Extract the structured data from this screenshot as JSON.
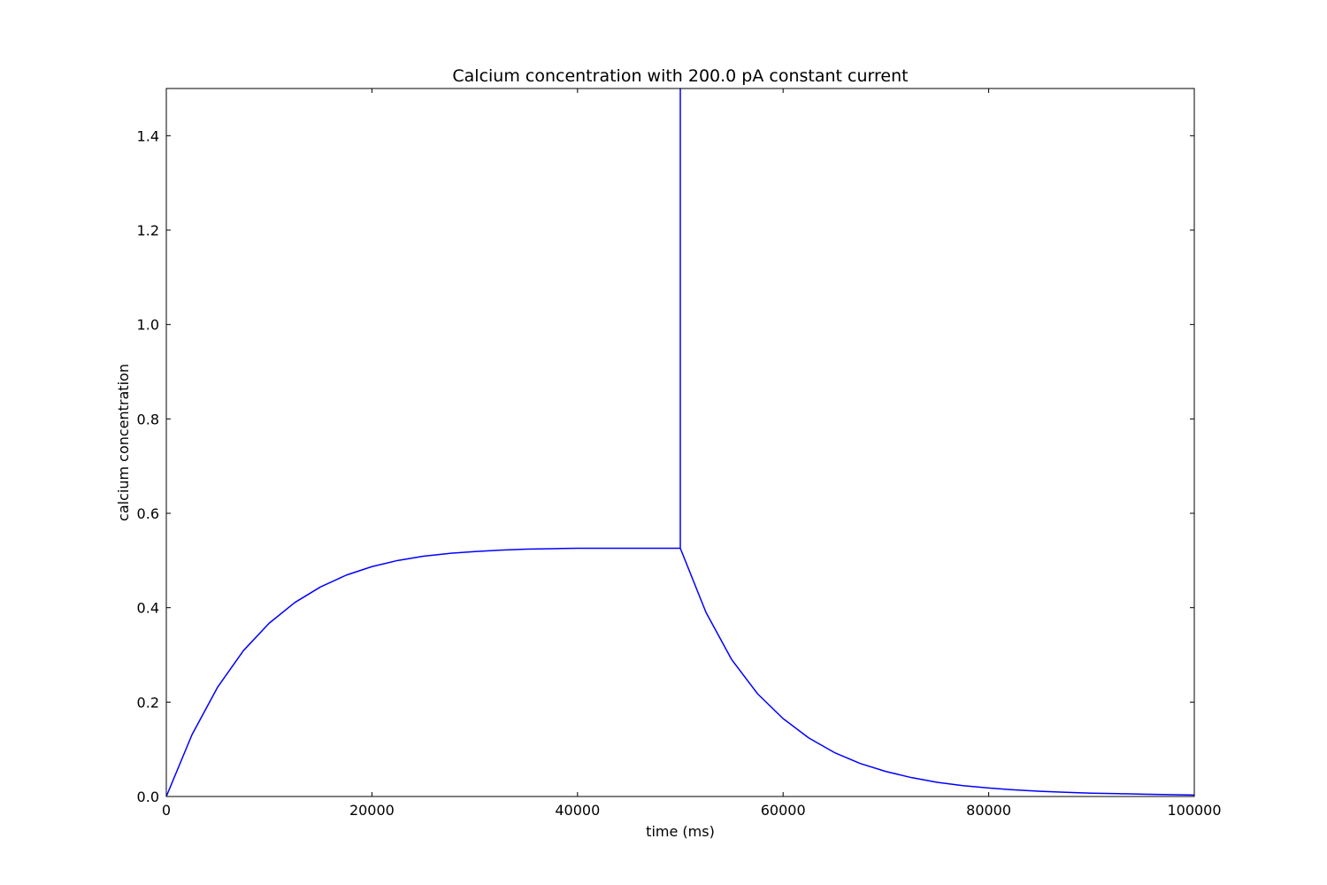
{
  "chart_data": {
    "type": "line",
    "title": "Calcium concentration with 200.0 pA constant current",
    "xlabel": "time (ms)",
    "ylabel": "calcium concentration",
    "xlim": [
      0,
      100000
    ],
    "ylim": [
      0.0,
      1.5
    ],
    "xticks": [
      0,
      20000,
      40000,
      60000,
      80000,
      100000
    ],
    "xtick_labels": [
      "0",
      "20000",
      "40000",
      "60000",
      "80000",
      "100000"
    ],
    "yticks": [
      0.0,
      0.2,
      0.4,
      0.6,
      0.8,
      1.0,
      1.2,
      1.4
    ],
    "ytick_labels": [
      "0.0",
      "0.2",
      "0.4",
      "0.6",
      "0.8",
      "1.0",
      "1.2",
      "1.4"
    ],
    "grid": false,
    "legend": "none",
    "series": [
      {
        "color": "#0000ff",
        "x": [
          0,
          2500,
          5000,
          7500,
          10000,
          12500,
          15000,
          17500,
          20000,
          22500,
          25000,
          27500,
          30000,
          32500,
          35000,
          37500,
          40000,
          42500,
          45000,
          47500,
          50000,
          50000,
          50000,
          52500,
          55000,
          57500,
          60000,
          62500,
          65000,
          67500,
          70000,
          72500,
          75000,
          77500,
          80000,
          82500,
          85000,
          87500,
          90000,
          92500,
          95000,
          97500,
          100000
        ],
        "y": [
          0.0,
          0.131,
          0.232,
          0.309,
          0.367,
          0.411,
          0.444,
          0.469,
          0.487,
          0.5,
          0.509,
          0.515,
          0.519,
          0.522,
          0.524,
          0.525,
          0.526,
          0.526,
          0.526,
          0.526,
          0.526,
          1.5,
          0.526,
          0.39,
          0.29,
          0.218,
          0.165,
          0.124,
          0.093,
          0.07,
          0.053,
          0.04,
          0.03,
          0.023,
          0.018,
          0.014,
          0.011,
          0.009,
          0.007,
          0.006,
          0.005,
          0.004,
          0.003
        ]
      }
    ]
  }
}
